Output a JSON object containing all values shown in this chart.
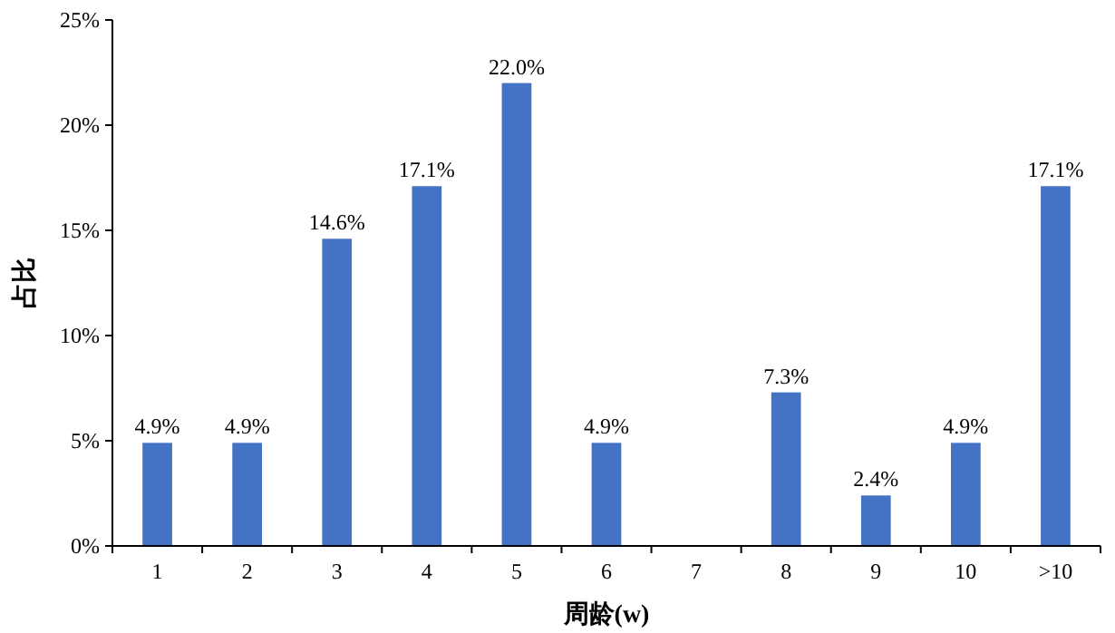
{
  "chart_data": {
    "type": "bar",
    "xlabel": "周龄(w)",
    "ylabel": "占比",
    "categories": [
      "1",
      "2",
      "3",
      "4",
      "5",
      "6",
      "7",
      "8",
      "9",
      "10",
      ">10"
    ],
    "values": [
      4.9,
      4.9,
      14.6,
      17.1,
      22.0,
      4.9,
      null,
      7.3,
      2.4,
      4.9,
      17.1
    ],
    "value_labels": [
      "4.9%",
      "4.9%",
      "14.6%",
      "17.1%",
      "22.0%",
      "4.9%",
      null,
      "7.3%",
      "2.4%",
      "4.9%",
      "17.1%"
    ],
    "color": "#4472c4",
    "ylim": [
      0,
      25
    ],
    "yticks": [
      {
        "value": 0,
        "label": "0%"
      },
      {
        "value": 5,
        "label": "5%"
      },
      {
        "value": 10,
        "label": "10%"
      },
      {
        "value": 15,
        "label": "15%"
      },
      {
        "value": 20,
        "label": "20%"
      },
      {
        "value": 25,
        "label": "25%"
      }
    ],
    "grid": false
  }
}
